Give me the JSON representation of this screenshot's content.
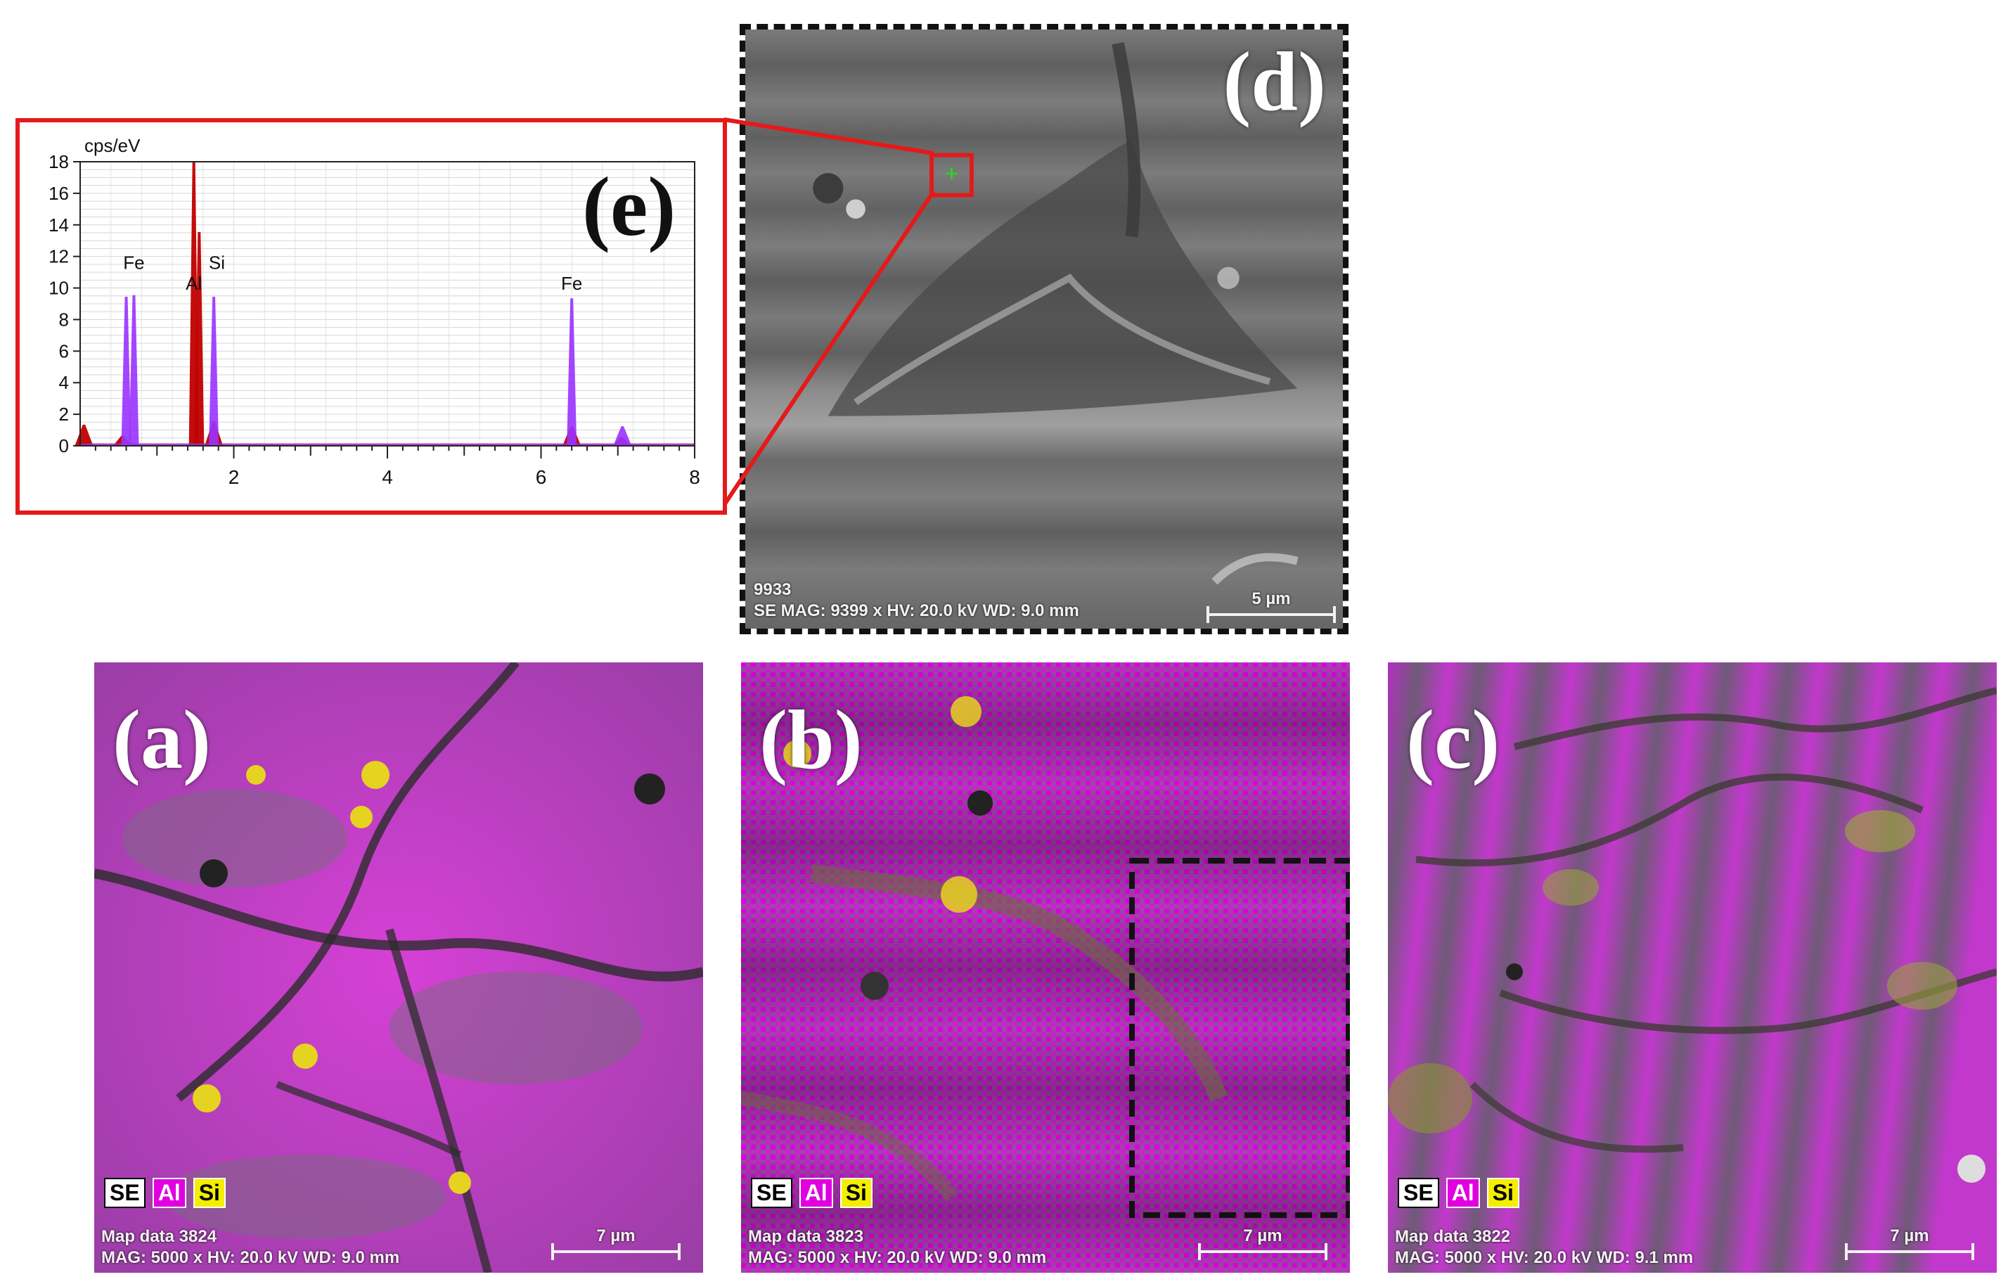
{
  "panels": {
    "a": {
      "label": "(a)",
      "legend": [
        "SE",
        "Al",
        "Si"
      ],
      "info_line1": "Map data 3824",
      "info_line2": "MAG: 5000 x HV: 20.0 kV WD: 9.0 mm",
      "scale": "7 µm"
    },
    "b": {
      "label": "(b)",
      "legend": [
        "SE",
        "Al",
        "Si"
      ],
      "info_line1": "Map data 3823",
      "info_line2": "MAG: 5000 x HV: 20.0 kV WD: 9.0 mm",
      "scale": "7 µm"
    },
    "c": {
      "label": "(c)",
      "legend": [
        "SE",
        "Al",
        "Si"
      ],
      "info_line1": "Map data 3822",
      "info_line2": "MAG: 5000 x HV: 20.0 kV WD: 9.1 mm",
      "scale": "7 µm"
    },
    "d": {
      "label": "(d)",
      "info_line1": "9933",
      "info_line2": "SE  MAG: 9399 x  HV: 20.0 kV  WD: 9.0 mm",
      "scale": "5 µm"
    }
  },
  "chart_data": {
    "type": "line",
    "label": "(e)",
    "ylabel": "cps/eV",
    "xlim": [
      0,
      8
    ],
    "ylim": [
      0,
      18
    ],
    "x_ticks": [
      "2",
      "4",
      "6",
      "8"
    ],
    "y_ticks": [
      "0",
      "2",
      "4",
      "6",
      "8",
      "10",
      "12",
      "14",
      "16",
      "18"
    ],
    "annotations": [
      {
        "text": "Fe",
        "x": 0.7,
        "y": 11.2
      },
      {
        "text": "Al",
        "x": 1.48,
        "y": 9.9
      },
      {
        "text": "Si",
        "x": 1.78,
        "y": 11.2
      },
      {
        "text": "Fe",
        "x": 6.4,
        "y": 9.9
      }
    ],
    "series": [
      {
        "color": "#c00000",
        "peaks": [
          {
            "x": 0.05,
            "y": 1.3
          },
          {
            "x": 0.55,
            "y": 0.6
          },
          {
            "x": 1.48,
            "y": 18.0
          },
          {
            "x": 1.55,
            "y": 13.5
          },
          {
            "x": 1.74,
            "y": 1.5
          },
          {
            "x": 6.4,
            "y": 1.2
          },
          {
            "x": 7.05,
            "y": 0.5
          }
        ]
      },
      {
        "color": "#9a32ff",
        "peaks": [
          {
            "x": 0.6,
            "y": 9.4
          },
          {
            "x": 0.7,
            "y": 9.5
          },
          {
            "x": 1.74,
            "y": 9.4
          },
          {
            "x": 6.4,
            "y": 9.3
          },
          {
            "x": 7.06,
            "y": 1.2
          }
        ]
      }
    ]
  },
  "colors": {
    "al": "#e000e0",
    "si": "#f4ee00",
    "frame": "#e41a1a"
  }
}
